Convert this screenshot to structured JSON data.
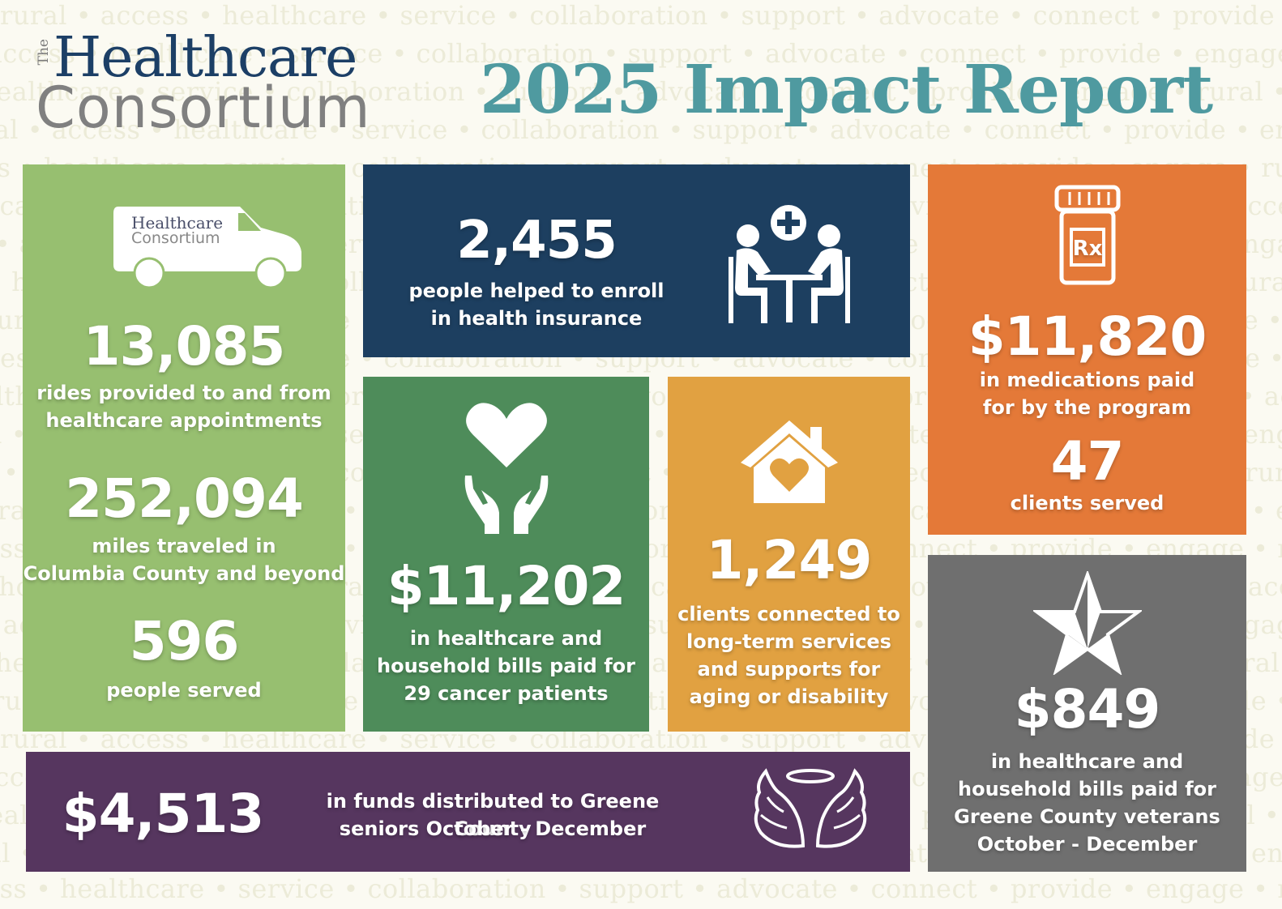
{
  "background_words": "rural • access • healthcare • service • collaboration • support • advocate • connect • provide • engage • ",
  "header": {
    "logo": {
      "the": "The",
      "line1": "Healthcare",
      "line2": "Consortium"
    },
    "title": "2025 Impact Report"
  },
  "colors": {
    "transport": "#97bf70",
    "insurance": "#1d3f60",
    "cancer": "#4e8c5a",
    "longterm": "#e1a141",
    "medications": "#e47938",
    "veterans": "#6f6f6f",
    "seniors": "#56365f",
    "title": "#4f9aa0"
  },
  "tiles": {
    "transport": {
      "icon": "van-icon",
      "van_logo_line1": "Healthcare",
      "van_logo_line2": "Consortium",
      "stats": [
        {
          "value": "13,085",
          "label_line1": "rides provided to and from",
          "label_line2": "healthcare appointments"
        },
        {
          "value": "252,094",
          "label_line1": "miles traveled in",
          "label_line2": "Columbia County and beyond"
        },
        {
          "value": "596",
          "label_line1": "people served"
        }
      ]
    },
    "insurance": {
      "icon": "people-table-medical-icon",
      "value": "2,455",
      "label_line1": "people helped to enroll",
      "label_line2": "in health insurance"
    },
    "cancer": {
      "icon": "heart-hands-icon",
      "value": "$11,202",
      "label_line1": "in healthcare and",
      "label_line2": "household bills paid for",
      "label_line3": "29 cancer patients"
    },
    "longterm": {
      "icon": "house-heart-icon",
      "value": "1,249",
      "label_line1": "clients connected to",
      "label_line2": "long-term services",
      "label_line3": "and supports for",
      "label_line4": "aging or disability"
    },
    "medications": {
      "icon": "prescription-bottle-icon",
      "value": "$11,820",
      "label_line1": "in medications paid",
      "label_line2": "for by the program",
      "value2": "47",
      "label2": "clients served"
    },
    "veterans": {
      "icon": "star-icon",
      "value": "$849",
      "label_line1": "in healthcare and",
      "label_line2": "household bills paid for",
      "label_line3": "Greene County veterans",
      "label_line4": "October - December"
    },
    "seniors": {
      "icon": "angel-wings-icon",
      "value": "$4,513",
      "label_line1": "in funds distributed to Greene County",
      "label_line2": "seniors October - December"
    }
  }
}
